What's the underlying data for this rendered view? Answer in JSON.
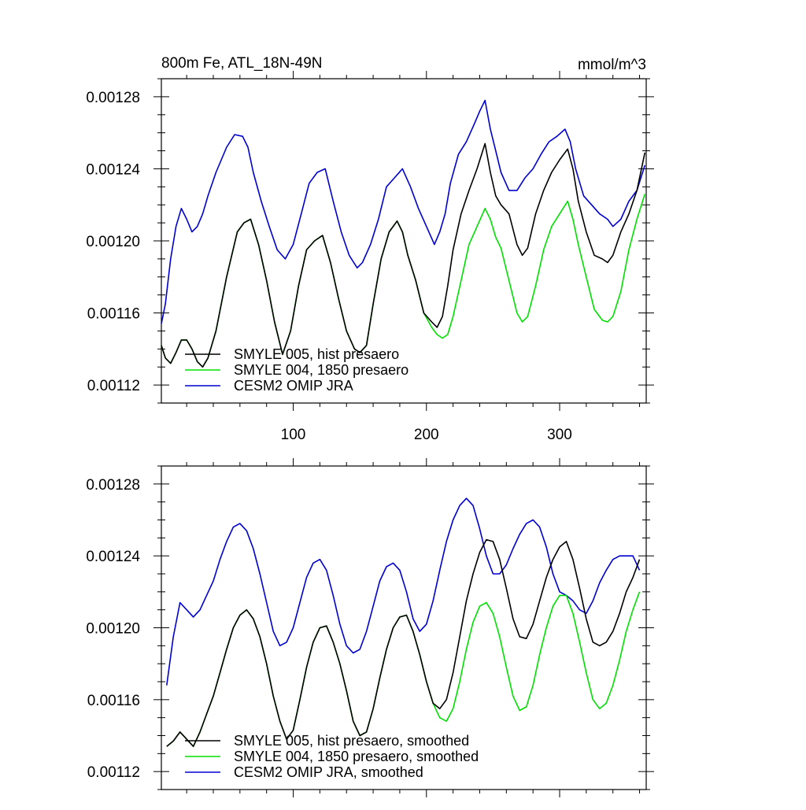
{
  "figure": {
    "title_left": "800m Fe, ATL_18N-49N",
    "title_right": "mmol/m^3"
  },
  "colors": {
    "black": "#000000",
    "green": "#00e000",
    "blue": "#0000d0",
    "axis": "#000000"
  },
  "chart_data": [
    {
      "type": "line",
      "title": "800m Fe, ATL_18N-49N",
      "units": "mmol/m^3",
      "xlim": [
        1,
        365
      ],
      "ylim": [
        0.00111,
        0.00129
      ],
      "x_ticks": [
        100,
        200,
        300
      ],
      "x_tick_labels": [
        "100",
        "200",
        "300"
      ],
      "y_ticks": [
        0.00112,
        0.00116,
        0.0012,
        0.00124,
        0.00128
      ],
      "y_tick_labels": [
        "0.00112",
        "0.00116",
        "0.00120",
        "0.00124",
        "0.00128"
      ],
      "legend_position": "bottom-left",
      "series": [
        {
          "name": "SMYLE 005, hist presaero",
          "color": "#000000",
          "x": [
            1,
            4,
            8,
            12,
            16,
            20,
            24,
            28,
            32,
            36,
            42,
            50,
            58,
            63,
            68,
            74,
            80,
            86,
            92,
            98,
            104,
            110,
            116,
            122,
            128,
            134,
            140,
            146,
            150,
            155,
            160,
            166,
            172,
            178,
            182,
            186,
            192,
            198,
            204,
            208,
            212,
            216,
            220,
            226,
            232,
            238,
            244,
            248,
            252,
            256,
            262,
            268,
            272,
            276,
            282,
            288,
            294,
            300,
            306,
            310,
            314,
            320,
            326,
            332,
            336,
            340,
            346,
            352,
            358,
            364
          ],
          "y": [
            0.001142,
            0.001135,
            0.001132,
            0.001138,
            0.001145,
            0.001145,
            0.00114,
            0.001133,
            0.00113,
            0.001135,
            0.00115,
            0.00118,
            0.001205,
            0.00121,
            0.001212,
            0.001198,
            0.001178,
            0.001155,
            0.001137,
            0.00115,
            0.001175,
            0.001195,
            0.0012,
            0.001203,
            0.001188,
            0.001168,
            0.00115,
            0.00114,
            0.001138,
            0.001142,
            0.001165,
            0.00119,
            0.001205,
            0.001211,
            0.001205,
            0.001192,
            0.001178,
            0.00116,
            0.001155,
            0.001152,
            0.001158,
            0.001175,
            0.001195,
            0.001215,
            0.001228,
            0.00124,
            0.001254,
            0.001238,
            0.001225,
            0.00122,
            0.001215,
            0.001198,
            0.001192,
            0.001196,
            0.001215,
            0.001228,
            0.001238,
            0.001245,
            0.001251,
            0.00124,
            0.001222,
            0.001205,
            0.001192,
            0.00119,
            0.001188,
            0.001192,
            0.001205,
            0.001215,
            0.001228,
            0.001249
          ]
        },
        {
          "name": "SMYLE 004, 1850 presaero",
          "color": "#00e000",
          "x": [
            1,
            4,
            8,
            12,
            16,
            20,
            24,
            28,
            32,
            36,
            42,
            50,
            58,
            63,
            68,
            74,
            80,
            86,
            92,
            98,
            104,
            110,
            116,
            122,
            128,
            134,
            140,
            146,
            150,
            155,
            160,
            166,
            172,
            178,
            182,
            186,
            192,
            198,
            204,
            208,
            212,
            216,
            220,
            226,
            232,
            238,
            244,
            248,
            252,
            256,
            262,
            268,
            272,
            276,
            282,
            288,
            294,
            300,
            306,
            310,
            314,
            320,
            326,
            332,
            336,
            340,
            346,
            352,
            358,
            364
          ],
          "y": [
            0.001142,
            0.001135,
            0.001132,
            0.001138,
            0.001145,
            0.001145,
            0.00114,
            0.001133,
            0.00113,
            0.001135,
            0.00115,
            0.00118,
            0.001205,
            0.00121,
            0.001212,
            0.001198,
            0.001178,
            0.001155,
            0.001137,
            0.00115,
            0.001175,
            0.001195,
            0.0012,
            0.001203,
            0.001188,
            0.001168,
            0.00115,
            0.00114,
            0.001138,
            0.001142,
            0.001165,
            0.00119,
            0.001205,
            0.001211,
            0.001205,
            0.001192,
            0.001178,
            0.00116,
            0.001152,
            0.001148,
            0.001146,
            0.001148,
            0.001158,
            0.001178,
            0.001198,
            0.001208,
            0.001218,
            0.001212,
            0.001202,
            0.001196,
            0.001178,
            0.00116,
            0.001155,
            0.001158,
            0.001175,
            0.001195,
            0.001208,
            0.001215,
            0.001222,
            0.001212,
            0.001198,
            0.00118,
            0.001162,
            0.001156,
            0.001155,
            0.001158,
            0.001172,
            0.001195,
            0.001212,
            0.001226
          ]
        },
        {
          "name": "CESM2 OMIP JRA",
          "color": "#0000d0",
          "x": [
            1,
            4,
            8,
            12,
            16,
            20,
            24,
            28,
            32,
            36,
            42,
            50,
            56,
            62,
            66,
            70,
            76,
            82,
            88,
            94,
            100,
            106,
            112,
            118,
            124,
            130,
            136,
            142,
            148,
            152,
            158,
            164,
            170,
            176,
            182,
            188,
            194,
            200,
            206,
            210,
            214,
            218,
            224,
            230,
            236,
            240,
            244,
            248,
            252,
            256,
            262,
            268,
            274,
            280,
            286,
            292,
            298,
            304,
            308,
            312,
            318,
            324,
            330,
            336,
            340,
            346,
            352,
            358,
            364
          ],
          "y": [
            0.001154,
            0.001165,
            0.00119,
            0.001208,
            0.001218,
            0.001212,
            0.001205,
            0.001208,
            0.001215,
            0.001225,
            0.001238,
            0.001252,
            0.001259,
            0.001258,
            0.001252,
            0.001238,
            0.001222,
            0.001208,
            0.001195,
            0.00119,
            0.001198,
            0.001215,
            0.001232,
            0.001238,
            0.00124,
            0.001222,
            0.001205,
            0.001192,
            0.001185,
            0.001188,
            0.001198,
            0.001212,
            0.00123,
            0.001235,
            0.00124,
            0.00123,
            0.001218,
            0.001208,
            0.001198,
            0.001205,
            0.001215,
            0.001232,
            0.001248,
            0.001255,
            0.001265,
            0.001272,
            0.001278,
            0.001262,
            0.00125,
            0.001238,
            0.001228,
            0.001228,
            0.001235,
            0.00124,
            0.001248,
            0.001255,
            0.001258,
            0.001262,
            0.001255,
            0.00124,
            0.001225,
            0.00122,
            0.001215,
            0.001212,
            0.001208,
            0.001212,
            0.001222,
            0.001228,
            0.001242
          ]
        }
      ]
    },
    {
      "type": "line",
      "xlim": [
        1,
        365
      ],
      "ylim": [
        0.00111,
        0.00129
      ],
      "x_ticks": [
        100,
        200,
        300
      ],
      "y_ticks": [
        0.00112,
        0.00116,
        0.0012,
        0.00124,
        0.00128
      ],
      "y_tick_labels": [
        "0.00112",
        "0.00116",
        "0.00120",
        "0.00124",
        "0.00128"
      ],
      "legend_position": "bottom-left",
      "series": [
        {
          "name": "SMYLE 005, hist presaero, smoothed",
          "color": "#000000",
          "x": [
            5,
            10,
            15,
            20,
            25,
            30,
            35,
            40,
            45,
            50,
            55,
            60,
            65,
            70,
            75,
            80,
            85,
            90,
            95,
            100,
            105,
            110,
            115,
            120,
            125,
            130,
            135,
            140,
            145,
            150,
            155,
            160,
            165,
            170,
            175,
            180,
            185,
            190,
            195,
            200,
            205,
            210,
            215,
            220,
            225,
            230,
            235,
            240,
            245,
            250,
            255,
            260,
            265,
            270,
            275,
            280,
            285,
            290,
            295,
            300,
            305,
            310,
            315,
            320,
            325,
            330,
            335,
            340,
            345,
            350,
            355,
            360
          ],
          "y": [
            0.001134,
            0.001137,
            0.001142,
            0.001138,
            0.001134,
            0.001142,
            0.001152,
            0.001162,
            0.001175,
            0.001188,
            0.0012,
            0.001207,
            0.00121,
            0.001205,
            0.001195,
            0.00118,
            0.001162,
            0.001148,
            0.001138,
            0.001143,
            0.00116,
            0.001178,
            0.001192,
            0.0012,
            0.001201,
            0.001192,
            0.00118,
            0.001165,
            0.001148,
            0.00114,
            0.001142,
            0.001155,
            0.001172,
            0.001188,
            0.0012,
            0.001206,
            0.001207,
            0.001198,
            0.001185,
            0.00117,
            0.001158,
            0.001155,
            0.00116,
            0.001175,
            0.001195,
            0.001215,
            0.00123,
            0.001242,
            0.001249,
            0.001248,
            0.001238,
            0.001222,
            0.001205,
            0.001195,
            0.001194,
            0.001202,
            0.001215,
            0.001228,
            0.001238,
            0.001245,
            0.001248,
            0.001238,
            0.001222,
            0.001205,
            0.001192,
            0.00119,
            0.001192,
            0.001198,
            0.001208,
            0.00122,
            0.001228,
            0.001238
          ]
        },
        {
          "name": "SMYLE 004, 1850 presaero, smoothed",
          "color": "#00e000",
          "x": [
            5,
            10,
            15,
            20,
            25,
            30,
            35,
            40,
            45,
            50,
            55,
            60,
            65,
            70,
            75,
            80,
            85,
            90,
            95,
            100,
            105,
            110,
            115,
            120,
            125,
            130,
            135,
            140,
            145,
            150,
            155,
            160,
            165,
            170,
            175,
            180,
            185,
            190,
            195,
            200,
            205,
            210,
            215,
            220,
            225,
            230,
            235,
            240,
            245,
            250,
            255,
            260,
            265,
            270,
            275,
            280,
            285,
            290,
            295,
            300,
            305,
            310,
            315,
            320,
            325,
            330,
            335,
            340,
            345,
            350,
            355,
            360
          ],
          "y": [
            0.001134,
            0.001137,
            0.001142,
            0.001138,
            0.001134,
            0.001142,
            0.001152,
            0.001162,
            0.001175,
            0.001188,
            0.0012,
            0.001207,
            0.00121,
            0.001205,
            0.001195,
            0.00118,
            0.001162,
            0.001148,
            0.001138,
            0.001143,
            0.00116,
            0.001178,
            0.001192,
            0.0012,
            0.001201,
            0.001192,
            0.00118,
            0.001165,
            0.001148,
            0.00114,
            0.001142,
            0.001155,
            0.001172,
            0.001188,
            0.0012,
            0.001206,
            0.001207,
            0.001198,
            0.001185,
            0.00117,
            0.001158,
            0.00115,
            0.001148,
            0.001155,
            0.00117,
            0.001188,
            0.001203,
            0.001212,
            0.001214,
            0.001208,
            0.001195,
            0.001178,
            0.001162,
            0.001154,
            0.001156,
            0.001168,
            0.001185,
            0.0012,
            0.001212,
            0.001218,
            0.001218,
            0.001208,
            0.001192,
            0.001175,
            0.00116,
            0.001155,
            0.001158,
            0.001168,
            0.001182,
            0.001198,
            0.00121,
            0.00122
          ]
        },
        {
          "name": "CESM2 OMIP JRA, smoothed",
          "color": "#0000d0",
          "x": [
            5,
            10,
            15,
            20,
            25,
            30,
            35,
            40,
            45,
            50,
            55,
            60,
            65,
            70,
            75,
            80,
            85,
            90,
            95,
            100,
            105,
            110,
            115,
            120,
            125,
            130,
            135,
            140,
            145,
            150,
            155,
            160,
            165,
            170,
            175,
            180,
            185,
            190,
            195,
            200,
            205,
            210,
            215,
            220,
            225,
            230,
            235,
            240,
            245,
            250,
            255,
            260,
            265,
            270,
            275,
            280,
            285,
            290,
            295,
            300,
            305,
            310,
            315,
            320,
            325,
            330,
            335,
            340,
            345,
            350,
            355,
            360
          ],
          "y": [
            0.001168,
            0.001195,
            0.001214,
            0.00121,
            0.001206,
            0.00121,
            0.001218,
            0.001226,
            0.001238,
            0.001248,
            0.001256,
            0.001258,
            0.001254,
            0.001244,
            0.00123,
            0.001214,
            0.001198,
            0.00119,
            0.001192,
            0.0012,
            0.001214,
            0.001228,
            0.001236,
            0.001238,
            0.001232,
            0.001218,
            0.001202,
            0.00119,
            0.001186,
            0.001188,
            0.001198,
            0.001212,
            0.001226,
            0.001234,
            0.001236,
            0.001232,
            0.00122,
            0.001205,
            0.001198,
            0.001202,
            0.001215,
            0.001232,
            0.001248,
            0.00126,
            0.001268,
            0.001272,
            0.001268,
            0.001255,
            0.00124,
            0.00123,
            0.00123,
            0.001235,
            0.001244,
            0.001252,
            0.001258,
            0.00126,
            0.001256,
            0.001245,
            0.00123,
            0.00122,
            0.001218,
            0.001215,
            0.00121,
            0.001208,
            0.001215,
            0.001225,
            0.001232,
            0.001238,
            0.00124,
            0.00124,
            0.00124,
            0.001232
          ]
        }
      ]
    }
  ]
}
